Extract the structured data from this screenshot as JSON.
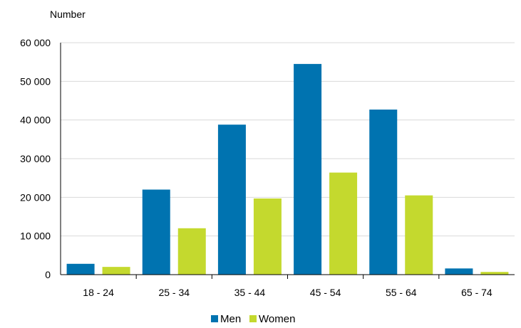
{
  "chart_data": {
    "type": "bar",
    "title": "",
    "ylabel": "Number",
    "xlabel": "",
    "categories": [
      "18 - 24",
      "25 - 34",
      "35 - 44",
      "45 - 54",
      "55 - 64",
      "65 - 74"
    ],
    "series": [
      {
        "name": "Men",
        "color": "#0073b0",
        "values": [
          2800,
          22000,
          38800,
          54500,
          42700,
          1600
        ]
      },
      {
        "name": "Women",
        "color": "#c4d92e",
        "values": [
          2000,
          12000,
          19700,
          26400,
          20500,
          700
        ]
      }
    ],
    "ylim": [
      0,
      60000
    ],
    "yticks": [
      0,
      10000,
      20000,
      30000,
      40000,
      50000,
      60000
    ],
    "ytick_labels": [
      "0",
      "10 000",
      "20 000",
      "30 000",
      "40 000",
      "50 000",
      "60 000"
    ],
    "grid": true,
    "legend_position": "bottom-center"
  }
}
